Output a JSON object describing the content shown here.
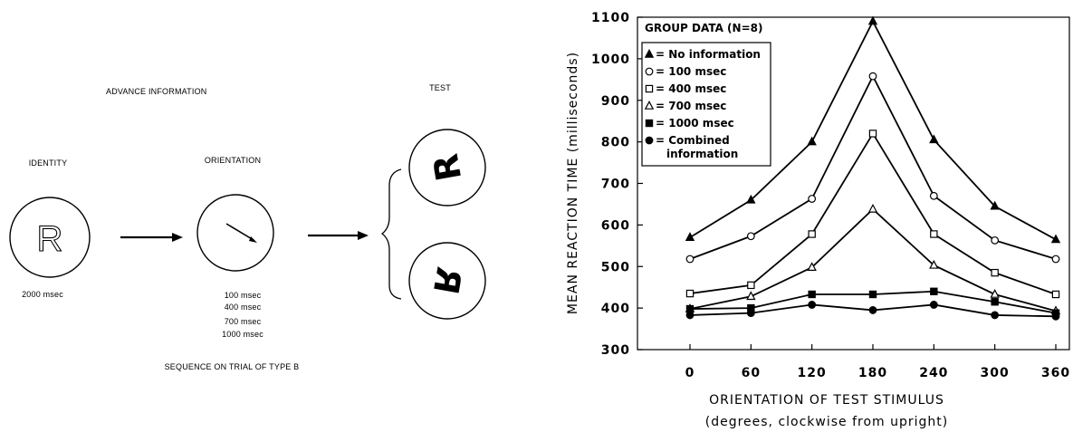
{
  "diagram": {
    "advance_information_label": "ADVANCE INFORMATION",
    "test_label": "TEST",
    "identity_label": "IDENTITY",
    "orientation_label": "ORIENTATION",
    "identity_letter": "R",
    "identity_duration": "2000 msec",
    "orientation_durations": [
      "100 msec",
      "400 msec",
      "700 msec",
      "1000 msec"
    ],
    "sequence_caption": "SEQUENCE ON TRIAL OF TYPE B",
    "test_letter": "R"
  },
  "chart_data": {
    "type": "line",
    "title": "GROUP DATA (N=8)",
    "xlabel": "ORIENTATION OF TEST STIMULUS",
    "xlabel_sub": "(degrees, clockwise from upright)",
    "ylabel": "MEAN REACTION TIME (milliseconds)",
    "x": [
      0,
      60,
      120,
      180,
      240,
      300,
      360
    ],
    "xticks": [
      "0",
      "60",
      "120",
      "180",
      "240",
      "300",
      "360"
    ],
    "yticks": [
      "300",
      "400",
      "500",
      "600",
      "700",
      "800",
      "900",
      "1000",
      "1100"
    ],
    "ylim": [
      300,
      1100
    ],
    "legend_position": "top-left",
    "series": [
      {
        "name": "No information",
        "marker": "filled-triangle",
        "values": [
          570,
          660,
          800,
          1090,
          805,
          645,
          565
        ]
      },
      {
        "name": "100 msec",
        "marker": "open-circle",
        "values": [
          518,
          573,
          663,
          958,
          670,
          563,
          518
        ]
      },
      {
        "name": "400 msec",
        "marker": "open-square",
        "values": [
          435,
          455,
          578,
          820,
          578,
          485,
          433
        ]
      },
      {
        "name": "700 msec",
        "marker": "open-triangle",
        "values": [
          398,
          428,
          498,
          638,
          503,
          433,
          393
        ]
      },
      {
        "name": "1000 msec",
        "marker": "filled-square",
        "values": [
          398,
          400,
          433,
          433,
          440,
          415,
          388
        ]
      },
      {
        "name": "Combined information",
        "name_line1": "Combined",
        "name_line2": "information",
        "marker": "filled-circle",
        "values": [
          383,
          388,
          408,
          395,
          408,
          383,
          380
        ]
      }
    ]
  }
}
